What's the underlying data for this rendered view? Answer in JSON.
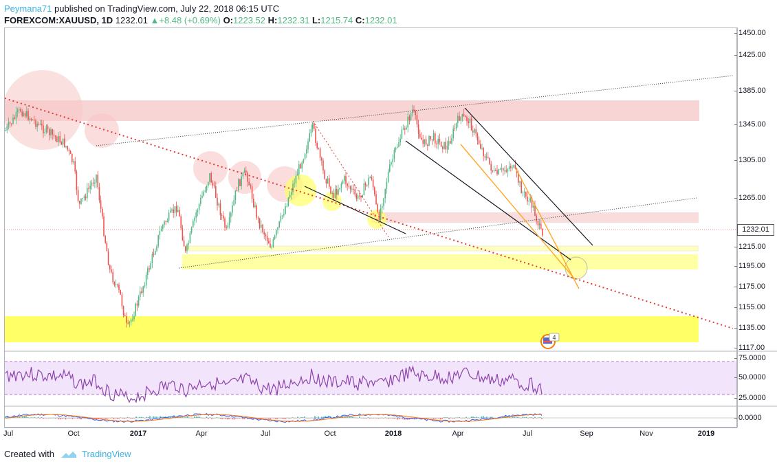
{
  "header": {
    "author": "Peymana71",
    "published_text": " published on TradingView.com, July 22, 2018 06:15 UTC"
  },
  "quote": {
    "symbol": "FOREXCOM:XAUUSD, 1D",
    "price": "1232.01",
    "change": "+8.48 (+0.69%)",
    "open_label": "O:",
    "open": "1223.52",
    "high_label": "H:",
    "high": "1232.31",
    "low_label": "L:",
    "low": "1215.74",
    "close_label": "C:",
    "close": "1232.01",
    "up_color": "#53b987",
    "down_color": "#ef5350"
  },
  "price_axis": {
    "ticks": [
      "1450.00",
      "1425.00",
      "1385.00",
      "1345.00",
      "1305.00",
      "1265.00",
      "1215.00",
      "1195.00",
      "1175.00",
      "1155.00",
      "1135.00",
      "1117.00"
    ],
    "last_price": "1232.01"
  },
  "rsi_axis": {
    "ticks": [
      "75.0000",
      "50.0000",
      "25.0000"
    ]
  },
  "macd_axis": {
    "ticks": [
      "0.0000"
    ]
  },
  "time_axis": {
    "ticks": [
      {
        "label": "Jul",
        "bold": false
      },
      {
        "label": "Oct",
        "bold": false
      },
      {
        "label": "2017",
        "bold": true
      },
      {
        "label": "Apr",
        "bold": false
      },
      {
        "label": "Jul",
        "bold": false
      },
      {
        "label": "Oct",
        "bold": false
      },
      {
        "label": "2018",
        "bold": true
      },
      {
        "label": "Apr",
        "bold": false
      },
      {
        "label": "Jul",
        "bold": false
      },
      {
        "label": "Sep",
        "bold": false
      },
      {
        "label": "Nov",
        "bold": false
      },
      {
        "label": "2019",
        "bold": true
      }
    ]
  },
  "badge": {
    "count": "4",
    "icon": "flag-us-icon"
  },
  "footer": {
    "created_with": "Created with",
    "brand": "TradingView",
    "logo_icon": "tradingview-cloud-icon"
  },
  "colors": {
    "zone_red": "#f4b9b9",
    "zone_yellow": "#ffff66",
    "rsi_line": "#8e44ad",
    "rsi_band": "#e8d5f5",
    "trend_red": "#e53935",
    "orange_line": "#ffa726"
  }
}
